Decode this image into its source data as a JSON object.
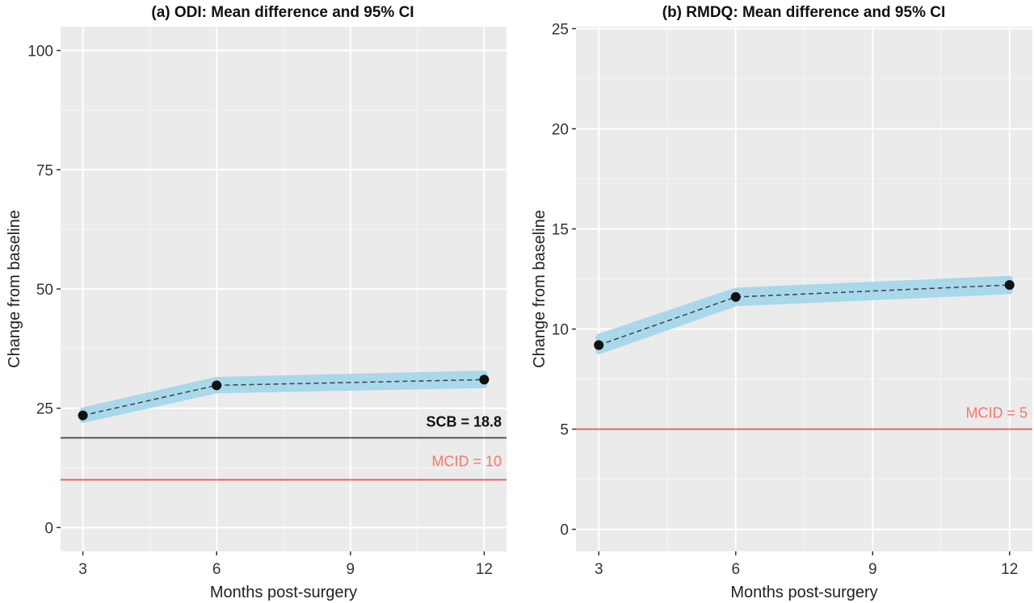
{
  "chart_data": [
    {
      "type": "line",
      "title": "(a) ODI: Mean difference and 95% CI",
      "xlabel": "Months post-surgery",
      "ylabel": "Change from baseline",
      "x": [
        3,
        6,
        9,
        12
      ],
      "x_ticks": [
        "3",
        "6",
        "9",
        "12"
      ],
      "y_ticks": [
        "0",
        "25",
        "50",
        "75",
        "100"
      ],
      "xlim": [
        2.5,
        12.5
      ],
      "ylim": [
        -5,
        105
      ],
      "series": [
        {
          "x": [
            3,
            6,
            12
          ],
          "values": [
            23.5,
            29.8,
            31.0
          ],
          "ci_lower": [
            22.6,
            28.8,
            29.9
          ],
          "ci_upper": [
            24.5,
            30.9,
            32.2
          ]
        }
      ],
      "reference_lines": [
        {
          "label": "SCB = 18.8",
          "value": 18.8,
          "color": "#555555",
          "label_color": "#111111",
          "bold": true
        },
        {
          "label": "MCID = 10",
          "value": 10,
          "color": "#E06666",
          "label_color": "#F8766D",
          "bold": false
        }
      ],
      "colors": {
        "panel": "#EBEBEB",
        "grid_major": "#FFFFFF",
        "ci_band": "#A8D8EA",
        "line": "#404040",
        "point": "#111111"
      },
      "grid": true
    },
    {
      "type": "line",
      "title": "(b) RMDQ: Mean difference and 95% CI",
      "xlabel": "Months post-surgery",
      "ylabel": "Change from baseline",
      "x": [
        3,
        6,
        9,
        12
      ],
      "x_ticks": [
        "3",
        "6",
        "9",
        "12"
      ],
      "y_ticks": [
        "0",
        "5",
        "10",
        "15",
        "20",
        "25"
      ],
      "xlim": [
        2.5,
        12.5
      ],
      "ylim": [
        -1.1,
        25.1
      ],
      "series": [
        {
          "x": [
            3,
            6,
            12
          ],
          "values": [
            9.2,
            11.6,
            12.2
          ],
          "ci_lower": [
            8.9,
            11.3,
            11.9
          ],
          "ci_upper": [
            9.6,
            11.9,
            12.5
          ]
        }
      ],
      "reference_lines": [
        {
          "label": "MCID = 5",
          "value": 5,
          "color": "#E06666",
          "label_color": "#F8766D",
          "bold": false
        }
      ],
      "colors": {
        "panel": "#EBEBEB",
        "grid_major": "#FFFFFF",
        "ci_band": "#A8D8EA",
        "line": "#404040",
        "point": "#111111"
      },
      "grid": true
    }
  ]
}
